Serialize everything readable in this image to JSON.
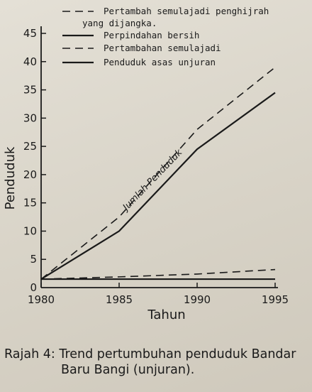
{
  "chart_data": {
    "type": "line",
    "x": [
      1980,
      1985,
      1990,
      1995
    ],
    "series": [
      {
        "name": "Pertambah semulajadi penghijrah yang dijangka.",
        "style": "dashed",
        "values": [
          1.5,
          12.5,
          28,
          39
        ]
      },
      {
        "name": "Perpindahan bersih",
        "style": "solid",
        "values": [
          1.5,
          10,
          24.5,
          34.5
        ]
      },
      {
        "name": "Pertambahan semulajadi",
        "style": "dashed",
        "values": [
          1.5,
          1.9,
          2.4,
          3.2
        ]
      },
      {
        "name": "Penduduk asas unjuran",
        "style": "solid",
        "values": [
          1.5,
          1.5,
          1.5,
          1.5
        ]
      }
    ],
    "xlabel": "Tahun",
    "ylabel": "Penduduk",
    "xticks": [
      "1980",
      "1985",
      "1990",
      "1995"
    ],
    "yticks": [
      "0",
      "5",
      "10",
      "15",
      "20",
      "25",
      "30",
      "35",
      "40",
      "45"
    ],
    "xlim": [
      1980,
      1995
    ],
    "ylim": [
      0,
      45
    ],
    "grid": false,
    "legend_position": "top",
    "annotation": "Jumlah Penduduk",
    "line_color": "#1a1a1a"
  },
  "caption": {
    "line1": "Rajah 4: Trend pertumbuhan penduduk Bandar",
    "line2": "Baru Bangi (unjuran)."
  }
}
